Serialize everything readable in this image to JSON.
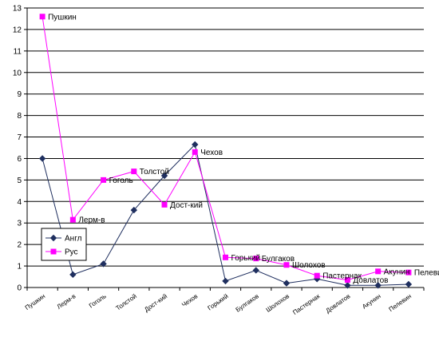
{
  "chart_data": {
    "type": "line",
    "categories": [
      "Пушкин",
      "Лерм-в",
      "Гоголь",
      "Толстой",
      "Дост-кий",
      "Чехов",
      "Горький",
      "Булгаков",
      "Шолохов",
      "Пастернак",
      "Довлатов",
      "Акунин",
      "Пелевин"
    ],
    "series": [
      {
        "name": "Англ",
        "color": "#1f2f5f",
        "marker": "diamond",
        "values": [
          6.0,
          0.6,
          1.1,
          3.6,
          5.2,
          6.65,
          0.3,
          0.8,
          0.2,
          0.4,
          0.1,
          0.1,
          0.15
        ]
      },
      {
        "name": "Рус",
        "color": "#ff00ff",
        "marker": "square",
        "values": [
          12.6,
          3.15,
          5.0,
          5.4,
          3.85,
          6.3,
          1.4,
          1.35,
          1.05,
          0.55,
          0.35,
          0.75,
          0.7
        ]
      }
    ],
    "data_labels": [
      {
        "series": 1,
        "index": 0,
        "text": "Пушкин"
      },
      {
        "series": 1,
        "index": 1,
        "text": "Лерм-в"
      },
      {
        "series": 1,
        "index": 2,
        "text": "Гоголь"
      },
      {
        "series": 1,
        "index": 3,
        "text": "Толстой"
      },
      {
        "series": 1,
        "index": 4,
        "text": "Дост-кий"
      },
      {
        "series": 1,
        "index": 5,
        "text": "Чехов"
      },
      {
        "series": 1,
        "index": 6,
        "text": "Горький"
      },
      {
        "series": 1,
        "index": 7,
        "text": "Булгаков"
      },
      {
        "series": 1,
        "index": 8,
        "text": "Шолохов"
      },
      {
        "series": 1,
        "index": 9,
        "text": "Пастернак"
      },
      {
        "series": 1,
        "index": 10,
        "text": "Довлатов"
      },
      {
        "series": 1,
        "index": 11,
        "text": "Акунин"
      },
      {
        "series": 1,
        "index": 12,
        "text": "Пелевин"
      }
    ],
    "title": "",
    "xlabel": "",
    "ylabel": "",
    "ylim": [
      0,
      13
    ],
    "yticks": [
      0,
      1,
      2,
      3,
      4,
      5,
      6,
      7,
      8,
      9,
      10,
      11,
      12,
      13
    ],
    "grid": true,
    "legend_placement": "left"
  }
}
